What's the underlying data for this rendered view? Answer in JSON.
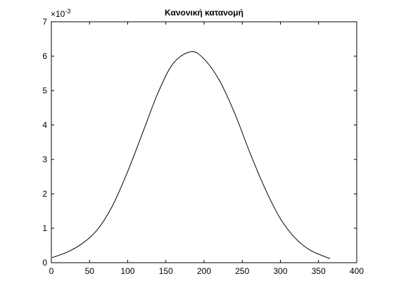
{
  "chart_data": {
    "type": "line",
    "title": "Κανονική κατανομή",
    "xlabel": "",
    "ylabel": "",
    "y_multiplier": "×10",
    "y_multiplier_exponent": "-3",
    "xlim": [
      0,
      400
    ],
    "ylim": [
      0,
      0.007
    ],
    "x_ticks": [
      0,
      50,
      100,
      150,
      200,
      250,
      300,
      350,
      400
    ],
    "y_ticks": [
      0,
      0.001,
      0.002,
      0.003,
      0.004,
      0.005,
      0.006,
      0.007
    ],
    "x_tick_labels": [
      "0",
      "50",
      "100",
      "150",
      "200",
      "250",
      "300",
      "350",
      "400"
    ],
    "y_tick_labels": [
      "0",
      "1",
      "2",
      "3",
      "4",
      "5",
      "6",
      "7"
    ],
    "grid": false,
    "legend": "none",
    "line_color": "#000000",
    "series": [
      {
        "x": [
          1,
          20,
          40,
          60,
          80,
          100,
          120,
          140,
          160,
          183,
          200,
          220,
          240,
          260,
          280,
          300,
          320,
          340,
          365
        ],
        "y": [
          0.00015,
          0.0003,
          0.00055,
          0.00095,
          0.00165,
          0.00265,
          0.0038,
          0.00495,
          0.0058,
          0.00613,
          0.00592,
          0.0053,
          0.00435,
          0.0032,
          0.00215,
          0.00128,
          0.0007,
          0.00035,
          0.00012
        ]
      }
    ]
  }
}
